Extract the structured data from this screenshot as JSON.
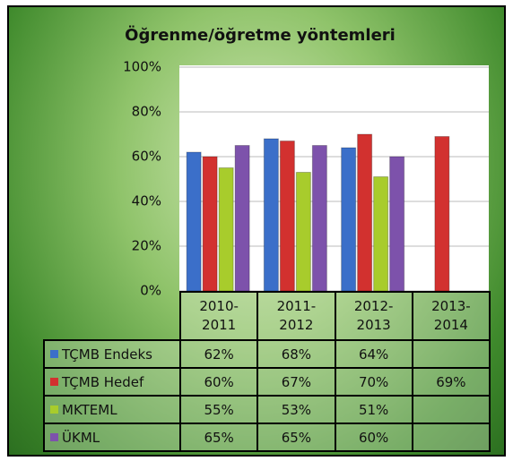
{
  "chart_data": {
    "type": "bar",
    "title": "Öğrenme/öğretme yöntemleri",
    "categories": [
      "2010-2011",
      "2011-2012",
      "2012-2013",
      "2013-2014"
    ],
    "series": [
      {
        "name": "TÇMB Endeks",
        "color": "#3b6fc9",
        "values": [
          62,
          68,
          64,
          null
        ],
        "value_labels": [
          "62%",
          "68%",
          "64%",
          null
        ]
      },
      {
        "name": "TÇMB Hedef",
        "color": "#d2312f",
        "values": [
          60,
          67,
          70,
          69
        ],
        "value_labels": [
          "60%",
          "67%",
          "70%",
          "69%"
        ]
      },
      {
        "name": "MKTEML",
        "color": "#a8cc2c",
        "values": [
          55,
          53,
          51,
          null
        ],
        "value_labels": [
          "55%",
          "53%",
          "51%",
          null
        ]
      },
      {
        "name": "ÜKML",
        "color": "#7d52ab",
        "values": [
          65,
          65,
          60,
          null
        ],
        "value_labels": [
          "65%",
          "65%",
          "60%",
          null
        ]
      }
    ],
    "ylim": [
      0,
      100
    ],
    "yticks": [
      {
        "value": 0,
        "label": "0%"
      },
      {
        "value": 20,
        "label": "20%"
      },
      {
        "value": 40,
        "label": "40%"
      },
      {
        "value": 60,
        "label": "60%"
      },
      {
        "value": 80,
        "label": "80%"
      },
      {
        "value": 100,
        "label": "100%"
      }
    ],
    "grid": true
  }
}
